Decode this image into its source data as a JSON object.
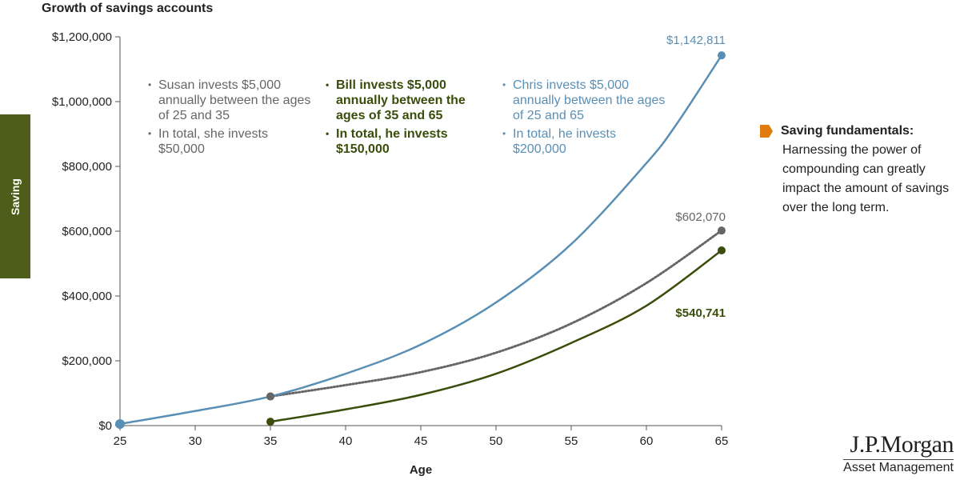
{
  "chart_data": {
    "type": "line",
    "title": "Growth of savings accounts",
    "xlabel": "Age",
    "ylabel": "Saving",
    "xlim": [
      25,
      65
    ],
    "ylim": [
      0,
      1200000
    ],
    "x_ticks": [
      25,
      30,
      35,
      40,
      45,
      50,
      55,
      60,
      65
    ],
    "y_ticks": [
      "$0",
      "$200,000",
      "$400,000",
      "$600,000",
      "$800,000",
      "$1,000,000",
      "$1,200,000"
    ],
    "y_tick_values": [
      0,
      200000,
      400000,
      600000,
      800000,
      1000000,
      1200000
    ],
    "series": [
      {
        "key": "chris",
        "color": "#5a8fb5",
        "style": "solid",
        "x": [
          25,
          30,
          35,
          40,
          45,
          50,
          55,
          60,
          62,
          65
        ],
        "values": [
          5000,
          45000,
          90000,
          160000,
          250000,
          380000,
          560000,
          810000,
          930000,
          1142811
        ],
        "end_label": "$1,142,811"
      },
      {
        "key": "susan",
        "color": "#666666",
        "style": "dotted",
        "x": [
          35,
          40,
          45,
          50,
          55,
          60,
          65
        ],
        "values": [
          90000,
          125000,
          165000,
          225000,
          315000,
          440000,
          602070
        ],
        "end_label": "$602,070"
      },
      {
        "key": "bill",
        "color": "#3a4d0b",
        "style": "solid",
        "x": [
          35,
          40,
          45,
          50,
          55,
          60,
          65
        ],
        "values": [
          12000,
          50000,
          95000,
          160000,
          255000,
          370000,
          540741
        ],
        "end_label": "$540,741"
      }
    ]
  },
  "annotations": {
    "susan": [
      "Susan invests $5,000 annually between the ages of 25 and 35",
      "In total, she invests $50,000"
    ],
    "bill": [
      "Bill invests $5,000 annually between the ages of 35 and 65",
      "In total, he invests $150,000"
    ],
    "chris": [
      "Chris invests $5,000 annually between the ages of 25 and 65",
      "In total, he invests $200,000"
    ]
  },
  "callout": {
    "heading": "Saving fundamentals:",
    "body": "Harnessing the power of compounding can greatly impact the amount of savings over the long term."
  },
  "logo": {
    "main": "J.P.Morgan",
    "sub": "Asset Management"
  }
}
